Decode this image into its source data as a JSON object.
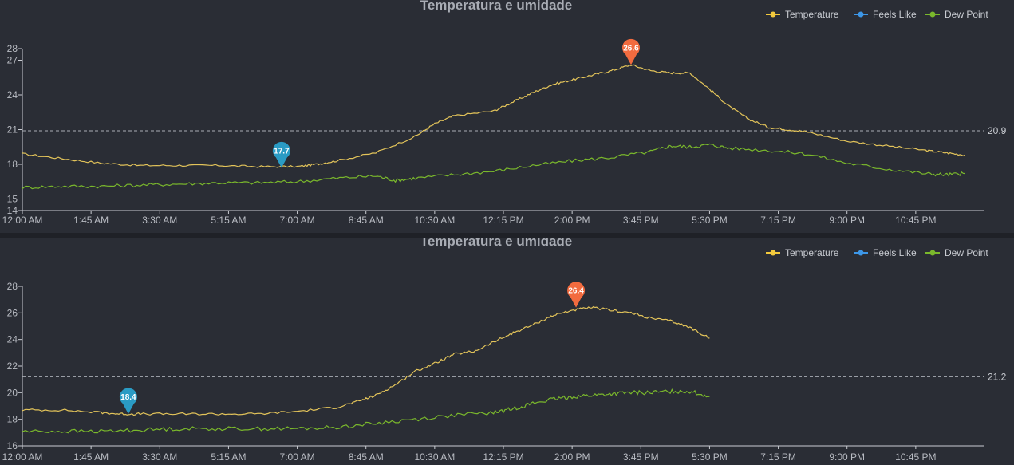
{
  "colors": {
    "background": "#2a2d35",
    "temperature": "#f2c93d",
    "temperature_line": "#e3c45a",
    "feels_like": "#3d97e8",
    "dew_point": "#7ab82c",
    "max_marker": "#f26b3f",
    "min_marker": "#2a9bc4",
    "axis": "#c9ccd2",
    "avg_line": "#a9adb5"
  },
  "x_tick_labels": [
    "12:00 AM",
    "1:45 AM",
    "3:30 AM",
    "5:15 AM",
    "7:00 AM",
    "8:45 AM",
    "10:30 AM",
    "12:15 PM",
    "2:00 PM",
    "3:45 PM",
    "5:30 PM",
    "7:15 PM",
    "9:00 PM",
    "10:45 PM"
  ],
  "chart_data": [
    {
      "type": "line",
      "title": "Temperatura e umidade",
      "x_unit": "hours",
      "xlim": [
        0,
        24.5
      ],
      "ylim": [
        14,
        28
      ],
      "y_ticks": [
        14,
        15,
        18,
        21,
        24,
        27,
        28
      ],
      "legend": {
        "position": "top-right",
        "entries": [
          "Temperature",
          "Feels Like",
          "Dew Point"
        ]
      },
      "average": {
        "value": 20.9,
        "label": "20.9"
      },
      "max_marker": {
        "x": 15.5,
        "y": 26.6,
        "label": "26.6"
      },
      "min_marker": {
        "x": 6.6,
        "y": 17.7,
        "label": "17.7"
      },
      "series": [
        {
          "name": "Temperature",
          "x": [
            0,
            1,
            2,
            3,
            4,
            5,
            6,
            7,
            7.5,
            8,
            9,
            10,
            10.5,
            11,
            12,
            12.5,
            13,
            13.5,
            14,
            14.5,
            15,
            15.5,
            16,
            16.5,
            17,
            17.5,
            18,
            18.5,
            19,
            19.5,
            20,
            21,
            22,
            23,
            23.5,
            24
          ],
          "values": [
            18.9,
            18.5,
            18.1,
            17.9,
            17.9,
            17.9,
            17.8,
            17.8,
            18.0,
            18.3,
            19.0,
            20.4,
            21.5,
            22.2,
            22.6,
            23.4,
            24.2,
            24.9,
            25.3,
            25.7,
            26.1,
            26.6,
            26.1,
            25.9,
            25.9,
            24.5,
            23.0,
            21.9,
            21.2,
            21.0,
            20.8,
            20.0,
            19.6,
            19.2,
            19.0,
            18.8
          ]
        },
        {
          "name": "Dew Point",
          "x": [
            0,
            1,
            2,
            3,
            4,
            5,
            6,
            7,
            8,
            9,
            9.5,
            10,
            11,
            12,
            13,
            14,
            15,
            16,
            16.5,
            17,
            17.5,
            18,
            19,
            20,
            21,
            22,
            23,
            23.5,
            24
          ],
          "values": [
            16.0,
            16.1,
            16.1,
            16.2,
            16.3,
            16.4,
            16.4,
            16.5,
            16.8,
            17.0,
            16.6,
            16.8,
            17.1,
            17.4,
            17.9,
            18.3,
            18.6,
            19.1,
            19.6,
            19.5,
            19.7,
            19.4,
            19.2,
            18.9,
            18.1,
            17.6,
            17.2,
            17.1,
            17.2
          ]
        }
      ]
    },
    {
      "type": "line",
      "title": "Temperatura e umidade",
      "x_unit": "hours",
      "xlim": [
        0,
        24.5
      ],
      "ylim": [
        16,
        28
      ],
      "y_ticks": [
        16,
        18,
        20,
        22,
        24,
        26,
        28
      ],
      "legend": {
        "position": "top-right",
        "entries": [
          "Temperature",
          "Feels Like",
          "Dew Point"
        ]
      },
      "average": {
        "value": 21.2,
        "label": "21.2"
      },
      "max_marker": {
        "x": 14.1,
        "y": 26.4,
        "label": "26.4"
      },
      "min_marker": {
        "x": 2.7,
        "y": 18.4,
        "label": "18.4"
      },
      "series": [
        {
          "name": "Temperature",
          "x": [
            0,
            1,
            2,
            2.5,
            3,
            4,
            5,
            6,
            7,
            8,
            8.5,
            9,
            9.5,
            10,
            10.5,
            11,
            11.5,
            12,
            12.5,
            13,
            13.5,
            14,
            14.5,
            15,
            15.5,
            16,
            16.5,
            17,
            17.5
          ],
          "values": [
            18.7,
            18.7,
            18.5,
            18.4,
            18.4,
            18.4,
            18.4,
            18.4,
            18.6,
            18.9,
            19.3,
            19.8,
            20.6,
            21.6,
            22.2,
            22.9,
            23.1,
            23.8,
            24.5,
            25.1,
            25.8,
            26.2,
            26.4,
            26.2,
            26.0,
            25.6,
            25.4,
            24.9,
            24.1
          ]
        },
        {
          "name": "Dew Point",
          "x": [
            0,
            1,
            2,
            3,
            4,
            5,
            6,
            7,
            8,
            9,
            10,
            11,
            12,
            12.5,
            13,
            13.5,
            14,
            14.5,
            15,
            15.5,
            16,
            16.5,
            17,
            17.5
          ],
          "values": [
            17.1,
            17.1,
            17.1,
            17.2,
            17.3,
            17.3,
            17.3,
            17.3,
            17.4,
            17.7,
            18.0,
            18.3,
            18.5,
            18.8,
            19.2,
            19.5,
            19.7,
            19.8,
            19.9,
            20.0,
            20.0,
            20.1,
            20.1,
            19.7
          ]
        }
      ]
    }
  ]
}
